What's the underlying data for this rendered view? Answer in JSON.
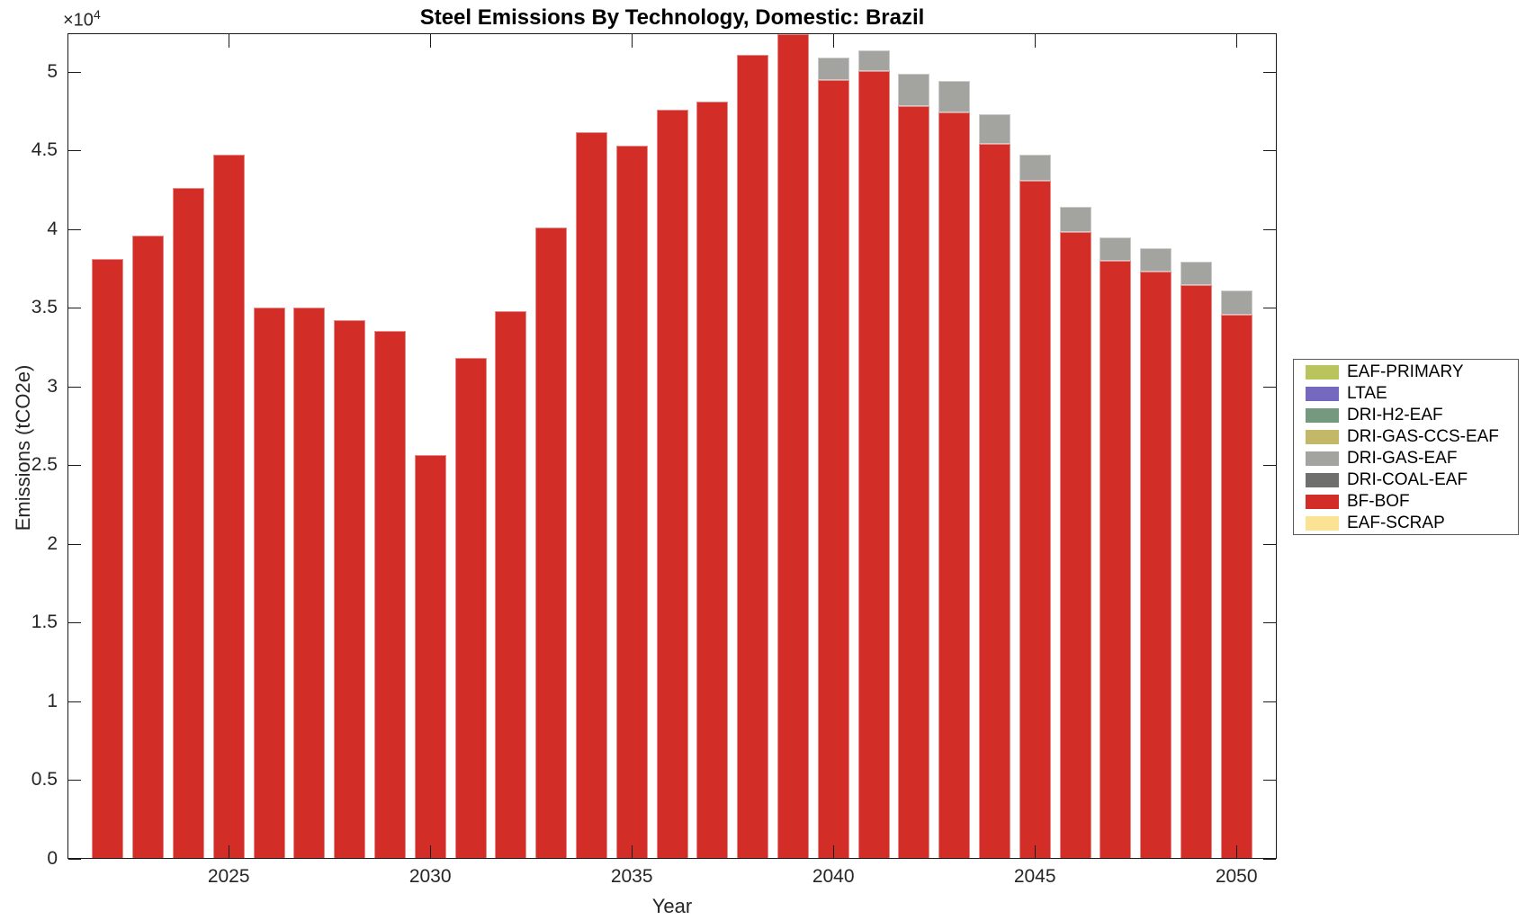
{
  "chart_data": {
    "type": "bar",
    "stacked": true,
    "title": "Steel Emissions By Technology, Domestic: Brazil",
    "xlabel": "Year",
    "ylabel": "Emissions (tCO2e)",
    "y_exponent_base": "×10",
    "y_exponent_power": "4",
    "xlim": [
      2021,
      2051
    ],
    "ylim": [
      0,
      52450
    ],
    "grid": false,
    "legend_position": "right-outside",
    "x_ticks": [
      2025,
      2030,
      2035,
      2040,
      2045,
      2050
    ],
    "x_tick_labels": [
      "2025",
      "2030",
      "2035",
      "2040",
      "2045",
      "2050"
    ],
    "y_ticks": [
      0,
      5000,
      10000,
      15000,
      20000,
      25000,
      30000,
      35000,
      40000,
      45000,
      50000
    ],
    "y_tick_labels": [
      "0",
      "0.5",
      "1",
      "1.5",
      "2",
      "2.5",
      "3",
      "3.5",
      "4",
      "4.5",
      "5"
    ],
    "years": [
      2022,
      2023,
      2024,
      2025,
      2026,
      2027,
      2028,
      2029,
      2030,
      2031,
      2032,
      2033,
      2034,
      2035,
      2036,
      2037,
      2038,
      2039,
      2040,
      2041,
      2042,
      2043,
      2044,
      2045,
      2046,
      2047,
      2048,
      2049,
      2050
    ],
    "series": [
      {
        "name": "EAF-SCRAP",
        "color": "#fae493",
        "values": [
          0,
          0,
          0,
          0,
          0,
          0,
          0,
          0,
          0,
          0,
          0,
          0,
          0,
          0,
          0,
          0,
          0,
          0,
          0,
          0,
          0,
          0,
          0,
          0,
          0,
          0,
          0,
          0,
          0
        ]
      },
      {
        "name": "BF-BOF",
        "color": "#d22d26",
        "values": [
          38100,
          39600,
          42600,
          44750,
          35050,
          35050,
          34250,
          33550,
          25650,
          31850,
          34800,
          40100,
          46150,
          45300,
          47600,
          48100,
          51100,
          52400,
          49500,
          50050,
          47850,
          47450,
          45450,
          43100,
          39850,
          38000,
          37300,
          36450,
          34550
        ]
      },
      {
        "name": "DRI-COAL-EAF",
        "color": "#6f6f6d",
        "values": [
          0,
          0,
          0,
          0,
          0,
          0,
          0,
          0,
          0,
          0,
          0,
          0,
          0,
          0,
          0,
          0,
          0,
          0,
          0,
          0,
          0,
          0,
          0,
          0,
          0,
          0,
          0,
          0,
          0
        ]
      },
      {
        "name": "DRI-GAS-EAF",
        "color": "#a3a3a0",
        "values": [
          0,
          0,
          0,
          0,
          0,
          0,
          0,
          0,
          0,
          0,
          0,
          0,
          0,
          0,
          0,
          0,
          0,
          0,
          1400,
          1300,
          2050,
          1950,
          1850,
          1650,
          1550,
          1500,
          1500,
          1500,
          1550
        ]
      },
      {
        "name": "DRI-GAS-CCS-EAF",
        "color": "#c3b768",
        "values": [
          0,
          0,
          0,
          0,
          0,
          0,
          0,
          0,
          0,
          0,
          0,
          0,
          0,
          0,
          0,
          0,
          0,
          0,
          0,
          0,
          0,
          0,
          0,
          0,
          0,
          0,
          0,
          0,
          0
        ]
      },
      {
        "name": "DRI-H2-EAF",
        "color": "#74997f",
        "values": [
          0,
          0,
          0,
          0,
          0,
          0,
          0,
          0,
          0,
          0,
          0,
          0,
          0,
          0,
          0,
          0,
          0,
          0,
          0,
          0,
          0,
          0,
          0,
          0,
          0,
          0,
          0,
          0,
          0
        ]
      },
      {
        "name": "LTAE",
        "color": "#7569bf",
        "values": [
          0,
          0,
          0,
          0,
          0,
          0,
          0,
          0,
          0,
          0,
          0,
          0,
          0,
          0,
          0,
          0,
          0,
          0,
          0,
          0,
          0,
          0,
          0,
          0,
          0,
          0,
          0,
          0,
          0
        ]
      },
      {
        "name": "EAF-PRIMARY",
        "color": "#b9c45c",
        "values": [
          0,
          0,
          0,
          0,
          0,
          0,
          0,
          0,
          0,
          0,
          0,
          0,
          0,
          0,
          0,
          0,
          0,
          0,
          0,
          0,
          0,
          0,
          0,
          0,
          0,
          0,
          0,
          0,
          0
        ]
      }
    ],
    "legend_order": [
      "EAF-PRIMARY",
      "LTAE",
      "DRI-H2-EAF",
      "DRI-GAS-CCS-EAF",
      "DRI-GAS-EAF",
      "DRI-COAL-EAF",
      "BF-BOF",
      "EAF-SCRAP"
    ]
  }
}
